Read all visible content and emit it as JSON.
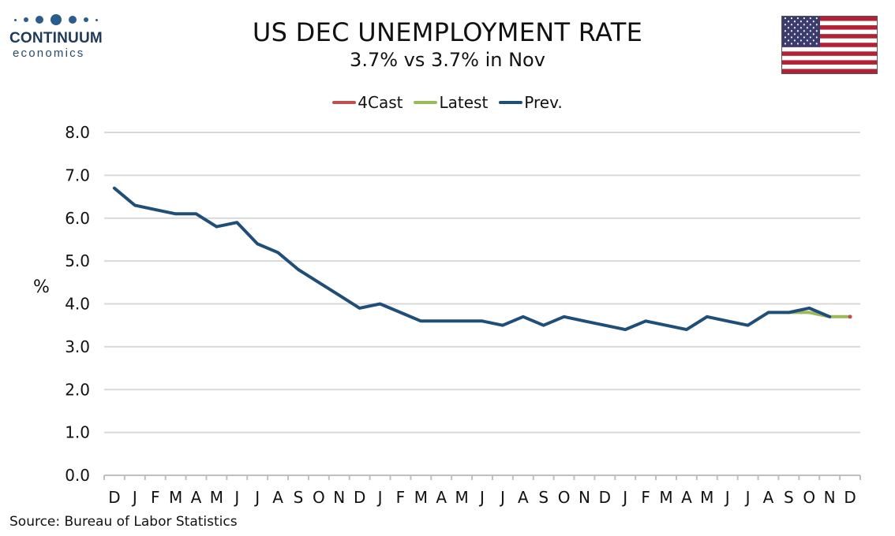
{
  "brand": {
    "name": "CONTINUUM",
    "sub": "economics"
  },
  "header": {
    "title": "US DEC UNEMPLOYMENT RATE",
    "subtitle": "3.7% vs 3.7% in Nov"
  },
  "footer": {
    "source": "Source: Bureau of Labor Statistics"
  },
  "colors": {
    "forecast": "#c0504d",
    "latest": "#9bbb59",
    "prev": "#1f4e79",
    "grid": "#d9d9d9",
    "axis": "#bfbfbf"
  },
  "chart_data": {
    "type": "line",
    "title": "US DEC UNEMPLOYMENT RATE",
    "subtitle": "3.7% vs 3.7% in Nov",
    "xlabel": "",
    "ylabel": "%",
    "ylim": [
      0,
      8
    ],
    "yticks": [
      "0.0",
      "1.0",
      "2.0",
      "3.0",
      "4.0",
      "5.0",
      "6.0",
      "7.0",
      "8.0"
    ],
    "grid": true,
    "legend_position": "top-center",
    "categories": [
      "D",
      "J",
      "F",
      "M",
      "A",
      "M",
      "J",
      "J",
      "A",
      "S",
      "O",
      "N",
      "D",
      "J",
      "F",
      "M",
      "A",
      "M",
      "J",
      "J",
      "A",
      "S",
      "O",
      "N",
      "D",
      "J",
      "F",
      "M",
      "A",
      "M",
      "J",
      "J",
      "A",
      "S",
      "O",
      "N",
      "D"
    ],
    "series": [
      {
        "name": "4Cast",
        "color": "#c0504d",
        "values": [
          null,
          null,
          null,
          null,
          null,
          null,
          null,
          null,
          null,
          null,
          null,
          null,
          null,
          null,
          null,
          null,
          null,
          null,
          null,
          null,
          null,
          null,
          null,
          null,
          null,
          null,
          null,
          null,
          null,
          null,
          null,
          null,
          null,
          null,
          null,
          null,
          3.7
        ]
      },
      {
        "name": "Latest",
        "color": "#9bbb59",
        "values": [
          null,
          null,
          null,
          null,
          null,
          null,
          null,
          null,
          null,
          null,
          null,
          null,
          null,
          null,
          null,
          null,
          null,
          null,
          null,
          null,
          null,
          null,
          null,
          null,
          null,
          null,
          null,
          null,
          null,
          null,
          null,
          null,
          null,
          3.8,
          3.8,
          3.7,
          3.7
        ]
      },
      {
        "name": "Prev.",
        "color": "#1f4e79",
        "values": [
          6.7,
          6.3,
          6.2,
          6.1,
          6.1,
          5.8,
          5.9,
          5.4,
          5.2,
          4.8,
          4.5,
          4.2,
          3.9,
          4.0,
          3.8,
          3.6,
          3.6,
          3.6,
          3.6,
          3.5,
          3.7,
          3.5,
          3.7,
          3.6,
          3.5,
          3.4,
          3.6,
          3.5,
          3.4,
          3.7,
          3.6,
          3.5,
          3.8,
          3.8,
          3.9,
          3.7,
          null
        ]
      }
    ]
  }
}
